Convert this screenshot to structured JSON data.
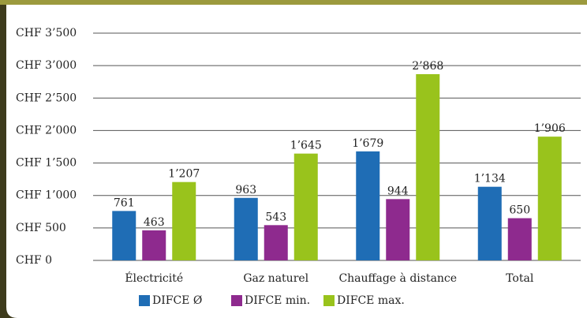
{
  "chart_data": {
    "type": "bar",
    "categories": [
      "Électricité",
      "Gaz naturel",
      "Chauffage à distance",
      "Total"
    ],
    "series": [
      {
        "name": "DIFCE Ø",
        "color": "#1f6db5",
        "values": [
          761,
          963,
          1679,
          1134
        ],
        "value_labels": [
          "761",
          "963",
          "1’679",
          "1’134"
        ]
      },
      {
        "name": "DIFCE min.",
        "color": "#8e2a8e",
        "values": [
          463,
          543,
          944,
          650
        ],
        "value_labels": [
          "463",
          "543",
          "944",
          "650"
        ]
      },
      {
        "name": "DIFCE max.",
        "color": "#99c31c",
        "values": [
          1207,
          1645,
          2868,
          1906
        ],
        "value_labels": [
          "1’207",
          "1’645",
          "2’868",
          "1’906"
        ]
      }
    ],
    "ylim": [
      0,
      3500
    ],
    "yticks": [
      {
        "value": 0,
        "label": "CHF 0"
      },
      {
        "value": 500,
        "label": "CHF 500"
      },
      {
        "value": 1000,
        "label": "CHF 1’000"
      },
      {
        "value": 1500,
        "label": "CHF 1’500"
      },
      {
        "value": 2000,
        "label": "CHF 2’000"
      },
      {
        "value": 2500,
        "label": "CHF 2’500"
      },
      {
        "value": 3000,
        "label": "CHF 3’000"
      },
      {
        "value": 3500,
        "label": "CHF 3’500"
      }
    ],
    "grid": true,
    "legend": "bottom"
  }
}
